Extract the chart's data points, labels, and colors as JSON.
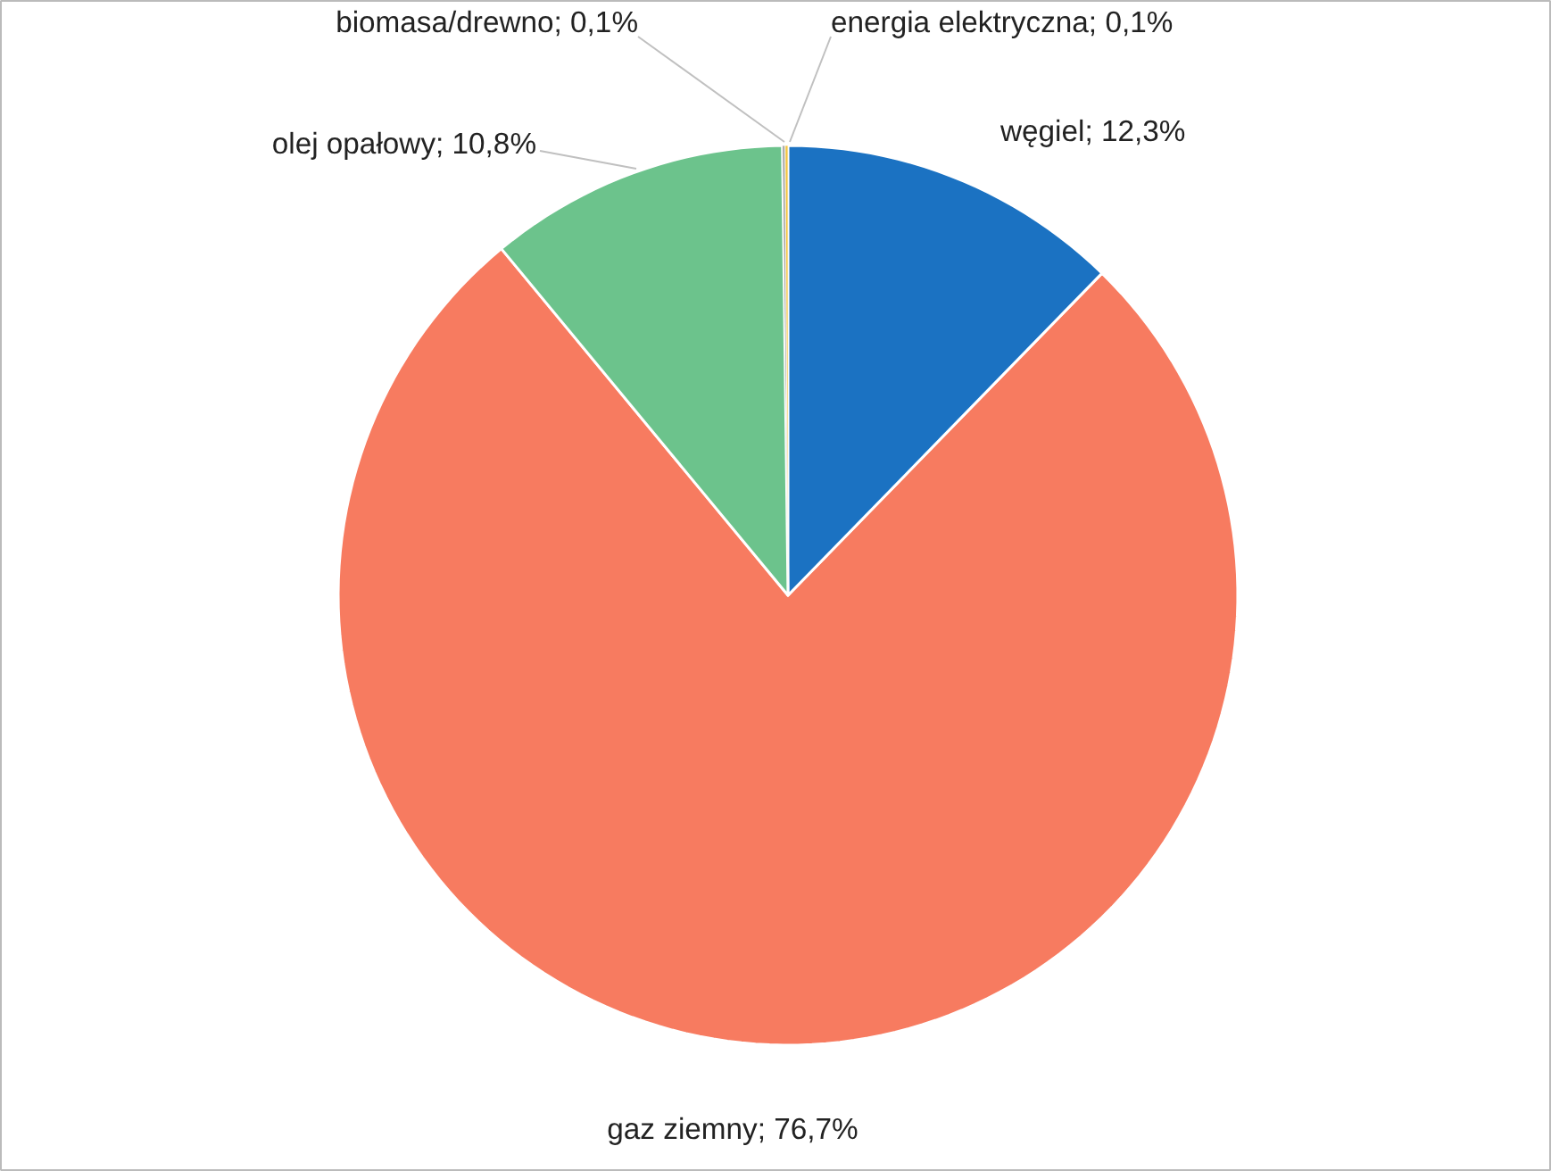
{
  "chart_data": {
    "type": "pie",
    "categories": [
      "węgiel",
      "gaz ziemny",
      "olej opałowy",
      "biomasa/drewno",
      "energia elektryczna"
    ],
    "values": [
      12.3,
      76.7,
      10.8,
      0.1,
      0.1
    ],
    "value_labels": [
      "12,3%",
      "76,7%",
      "10,8%",
      "0,1%",
      "0,1%"
    ],
    "colors": [
      "#1b72c2",
      "#f77b60",
      "#6cc38c",
      "#a5a5a5",
      "#f2c43d"
    ]
  }
}
